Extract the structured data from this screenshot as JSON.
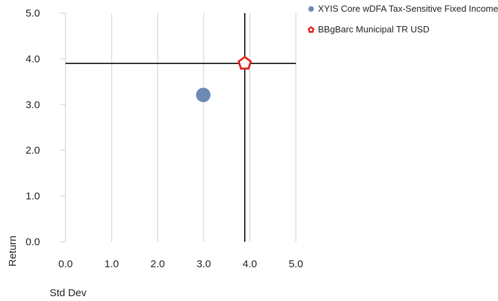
{
  "chart_data": {
    "type": "scatter",
    "xlabel": "Std Dev",
    "ylabel": "Return",
    "xlim": [
      0,
      5
    ],
    "ylim": [
      0,
      5
    ],
    "x_ticks": [
      "0.0",
      "1.0",
      "2.0",
      "3.0",
      "4.0",
      "5.0"
    ],
    "y_ticks": [
      "0.0",
      "1.0",
      "2.0",
      "3.0",
      "4.0",
      "5.0"
    ],
    "grid": "vertical",
    "legend_position": "top-right",
    "series": [
      {
        "name": "XYIS Core wDFA Tax-Sensitive Fixed Income",
        "marker": "circle",
        "color": "#6c8ab3",
        "points": [
          {
            "x": 2.99,
            "y": 3.21
          }
        ]
      },
      {
        "name": "BBgBarc Municipal TR USD",
        "marker": "pentagon",
        "color": "#e0231c",
        "points": [
          {
            "x": 3.89,
            "y": 3.9
          }
        ]
      }
    ],
    "crosshair": {
      "x": 3.89,
      "y": 3.9,
      "color": "#000000"
    }
  }
}
